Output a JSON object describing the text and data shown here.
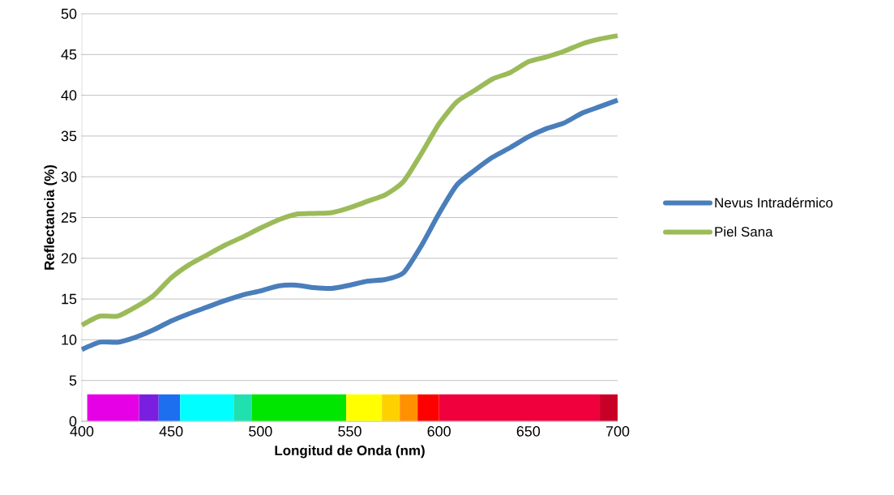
{
  "chart_data": {
    "type": "line",
    "xlabel": "Longitud de Onda (nm)",
    "ylabel": "Reflectancia (%)",
    "x": [
      400,
      410,
      420,
      430,
      440,
      450,
      460,
      470,
      480,
      490,
      500,
      510,
      520,
      530,
      540,
      550,
      560,
      570,
      580,
      590,
      600,
      610,
      620,
      630,
      640,
      650,
      660,
      670,
      680,
      690,
      700
    ],
    "series": [
      {
        "name": "Nevus Intradérmico",
        "color": "#4a7ebb",
        "values": [
          8.8,
          9.7,
          9.7,
          10.3,
          11.2,
          12.3,
          13.2,
          14.0,
          14.8,
          15.5,
          16.0,
          16.6,
          16.7,
          16.4,
          16.3,
          16.7,
          17.2,
          17.4,
          18.2,
          21.5,
          25.5,
          29.0,
          30.8,
          32.4,
          33.6,
          34.9,
          35.9,
          36.6,
          37.8,
          38.6,
          39.4
        ]
      },
      {
        "name": "Piel Sana",
        "color": "#9bbb59",
        "values": [
          11.8,
          12.9,
          12.9,
          14.0,
          15.4,
          17.6,
          19.2,
          20.4,
          21.6,
          22.6,
          23.7,
          24.7,
          25.4,
          25.5,
          25.6,
          26.2,
          27.0,
          27.8,
          29.4,
          32.8,
          36.5,
          39.2,
          40.6,
          42.0,
          42.8,
          44.1,
          44.7,
          45.4,
          46.3,
          46.9,
          47.3
        ]
      }
    ],
    "xlim": [
      400,
      700
    ],
    "ylim": [
      0,
      50
    ],
    "xticks": [
      400,
      450,
      500,
      550,
      600,
      650,
      700
    ],
    "yticks": [
      0,
      5,
      10,
      15,
      20,
      25,
      30,
      35,
      40,
      45,
      50
    ],
    "grid": "y",
    "legend": "right",
    "marker": "none",
    "line_style": "solid"
  }
}
